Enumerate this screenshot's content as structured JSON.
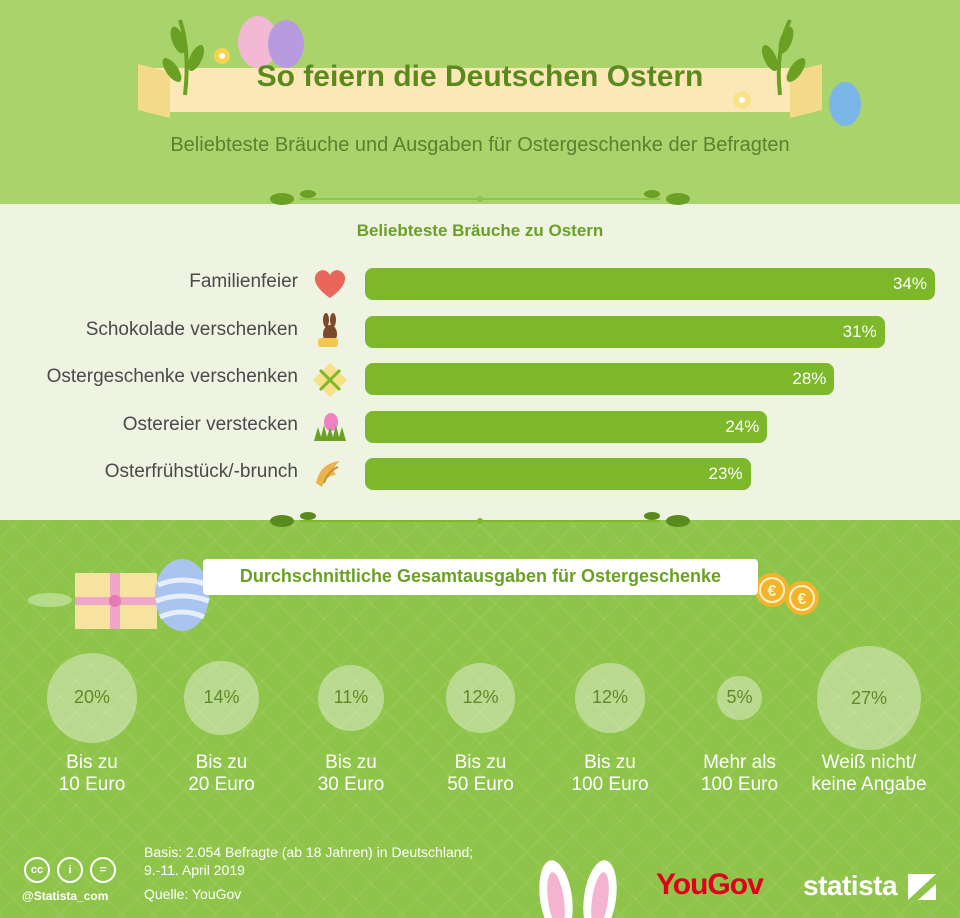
{
  "header": {
    "title": "So feiern die Deutschen Ostern",
    "subtitle": "Beliebteste Bräuche und Ausgaben für Ostergeschenke der Befragten"
  },
  "chart_data": [
    {
      "type": "bar",
      "orientation": "horizontal",
      "title": "Beliebteste Bräuche zu Ostern",
      "categories": [
        "Familienfeier",
        "Schokolade verschenken",
        "Ostergeschenke verschenken",
        "Ostereier verstecken",
        "Osterfrühstück/-brunch"
      ],
      "values": [
        34,
        31,
        28,
        24,
        23
      ],
      "value_labels": [
        "34%",
        "31%",
        "28%",
        "24%",
        "23%"
      ],
      "icons": [
        "heart-icon",
        "chocolate-bunny-icon",
        "gift-icon",
        "easter-egg-grass-icon",
        "croissant-icon"
      ],
      "color": "#7cb829",
      "xlim": [
        0,
        34
      ]
    },
    {
      "type": "bubble",
      "title": "Durchschnittliche Gesamtausgaben für Ostergeschenke",
      "categories": [
        [
          "Bis zu",
          "10 Euro"
        ],
        [
          "Bis zu",
          "20 Euro"
        ],
        [
          "Bis zu",
          "30 Euro"
        ],
        [
          "Bis zu",
          "50 Euro"
        ],
        [
          "Bis zu",
          "100 Euro"
        ],
        [
          "Mehr als",
          "100 Euro"
        ],
        [
          "Weiß nicht/",
          "keine Angabe"
        ]
      ],
      "values": [
        20,
        14,
        11,
        12,
        12,
        5,
        27
      ],
      "value_labels": [
        "20%",
        "14%",
        "11%",
        "12%",
        "12%",
        "5%",
        "27%"
      ]
    }
  ],
  "footer": {
    "basis_line1": "Basis: 2.054 Befragte (ab 18 Jahren) in Deutschland;",
    "basis_line2": "9.-11. April 2019",
    "source": "Quelle: YouGov",
    "handle": "@Statista_com",
    "yougov": "YouGov",
    "statista": "statista"
  },
  "colors": {
    "bar": "#7cb829",
    "top_bg": "#a9d46c",
    "mid_bg": "#eef3e2",
    "bottom_bg": "#8fc44a",
    "yougov_red": "#e0001a"
  }
}
